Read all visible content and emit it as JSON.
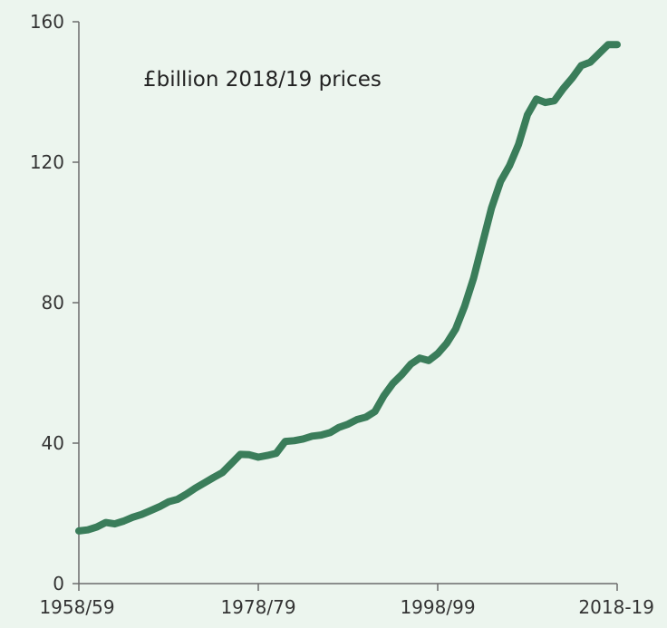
{
  "colors": {
    "background": "#ecf5ee",
    "line": "#3a7d5a",
    "axis": "#6b6b6b",
    "text": "#333333"
  },
  "chart_data": {
    "type": "line",
    "title": "",
    "annotation": "£billion 2018/19 prices",
    "xlabel": "",
    "ylabel": "",
    "grid": false,
    "legend": "none",
    "xlim": [
      1958,
      2018
    ],
    "ylim": [
      0,
      160
    ],
    "x_ticks": [
      {
        "x": 1958,
        "label": "1958/59"
      },
      {
        "x": 1978,
        "label": "1978/79"
      },
      {
        "x": 1998,
        "label": "1998/99"
      },
      {
        "x": 2018,
        "label": "2018-19"
      }
    ],
    "y_ticks": [
      {
        "y": 0,
        "label": "0"
      },
      {
        "y": 40,
        "label": "40"
      },
      {
        "y": 80,
        "label": "80"
      },
      {
        "y": 120,
        "label": "120"
      },
      {
        "y": 160,
        "label": "160"
      }
    ],
    "series": [
      {
        "x": [
          1958,
          1959,
          1960,
          1961,
          1962,
          1963,
          1964,
          1965,
          1966,
          1967,
          1968,
          1969,
          1970,
          1971,
          1972,
          1973,
          1974,
          1975,
          1976,
          1977,
          1978,
          1979,
          1980,
          1981,
          1982,
          1983,
          1984,
          1985,
          1986,
          1987,
          1988,
          1989,
          1990,
          1991,
          1992,
          1993,
          1994,
          1995,
          1996,
          1997,
          1998,
          1999,
          2000,
          2001,
          2002,
          2003,
          2004,
          2005,
          2006,
          2007,
          2008,
          2009,
          2010,
          2011,
          2012,
          2013,
          2014,
          2015,
          2016,
          2017,
          2018
        ],
        "values": [
          15.0,
          15.3,
          16.1,
          17.4,
          17.0,
          17.8,
          18.9,
          19.7,
          20.8,
          21.9,
          23.3,
          24.0,
          25.5,
          27.2,
          28.7,
          30.2,
          31.6,
          34.2,
          36.8,
          36.7,
          36.0,
          36.5,
          37.1,
          40.5,
          40.7,
          41.2,
          42.0,
          42.3,
          43.0,
          44.5,
          45.4,
          46.7,
          47.4,
          49.0,
          53.5,
          57.0,
          59.5,
          62.5,
          64.2,
          63.5,
          65.5,
          68.4,
          72.5,
          79.0,
          87.0,
          97.0,
          107.0,
          114.5,
          119.0,
          125.0,
          133.5,
          138.0,
          137.0,
          137.5,
          141.0,
          144.0,
          147.5,
          148.5,
          151.0,
          153.5,
          153.5
        ]
      }
    ]
  }
}
